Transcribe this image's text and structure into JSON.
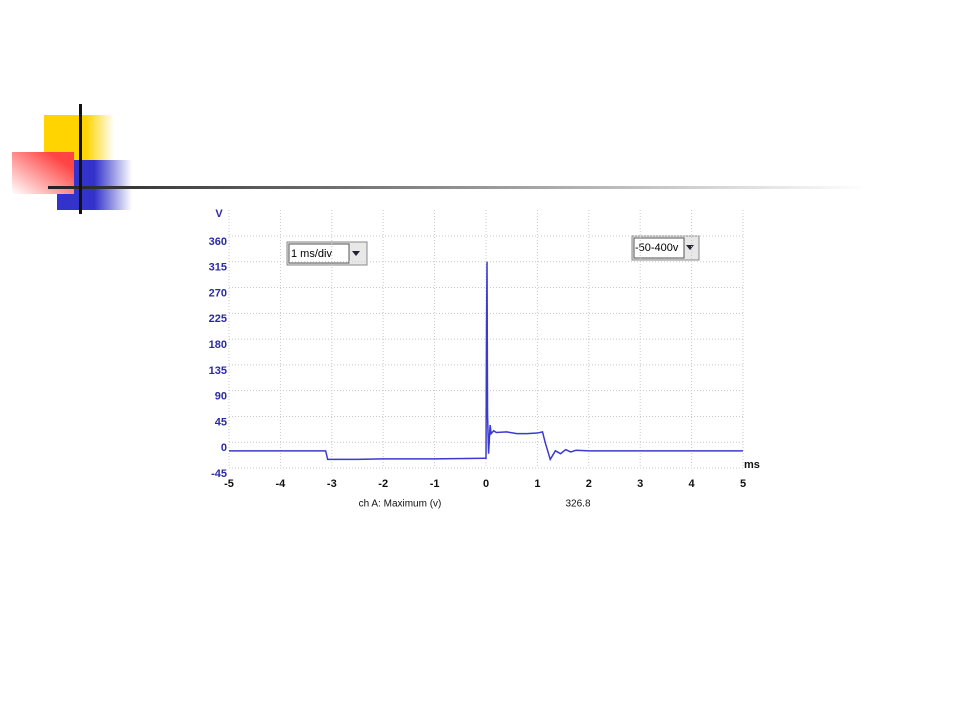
{
  "chart_data": {
    "type": "line",
    "y_label": "V",
    "x_label": "ms",
    "controls": {
      "timebase": "1 ms/div",
      "range": "-50-400v"
    },
    "measurement": {
      "label": "ch A: Maximum (v)",
      "value": 326.8
    },
    "xlim": [
      -5,
      5
    ],
    "xticks": [
      -5,
      -4,
      -3,
      -2,
      -1,
      0,
      1,
      2,
      3,
      4,
      5
    ],
    "ylim": [
      -45,
      360
    ],
    "yticks": [
      -45,
      0,
      45,
      90,
      135,
      180,
      225,
      270,
      315,
      360
    ],
    "grid": true,
    "series": [
      {
        "color": "#3a3ad0",
        "x": [
          -5,
          -3.12,
          -3.08,
          -2.5,
          -2,
          -1,
          -0.02,
          0.0,
          0.01,
          0.02,
          0.03,
          0.05,
          0.08,
          0.1,
          0.15,
          0.2,
          0.4,
          0.6,
          0.8,
          1.0,
          1.1,
          1.15,
          1.25,
          1.35,
          1.45,
          1.55,
          1.65,
          1.75,
          2.0,
          3,
          4,
          5
        ],
        "values": [
          -15,
          -15,
          -30,
          -30,
          -29,
          -29,
          -28,
          -28,
          200,
          315,
          50,
          -20,
          30,
          15,
          20,
          17,
          18,
          15,
          15,
          16,
          18,
          0,
          -30,
          -15,
          -20,
          -13,
          -17,
          -14,
          -15,
          -15,
          -15,
          -15
        ]
      }
    ]
  }
}
